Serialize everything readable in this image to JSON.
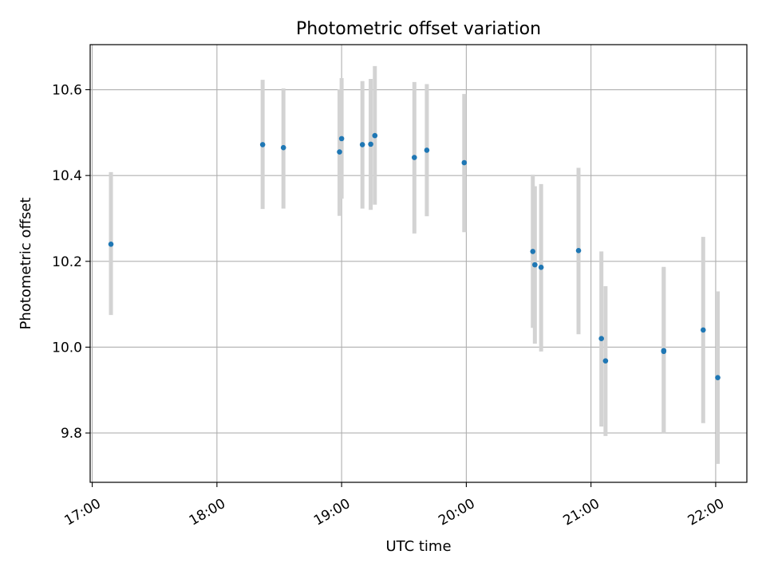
{
  "chart_data": {
    "type": "scatter",
    "title": "Photometric offset variation",
    "xlabel": "UTC time",
    "ylabel": "Photometric offset",
    "x_axis_type": "time",
    "xlim": [
      "16:59",
      "22:15"
    ],
    "ylim": [
      9.685,
      10.705
    ],
    "grid": true,
    "x_ticks": [
      "17:00",
      "18:00",
      "19:00",
      "20:00",
      "21:00",
      "22:00"
    ],
    "y_ticks": [
      "9.8",
      "10.0",
      "10.2",
      "10.4",
      "10.6"
    ],
    "point_color": "#1f77b4",
    "errorbar_color": "#d3d3d3",
    "points": [
      {
        "x": "17:09",
        "y": 10.24,
        "ylow": 10.075,
        "yhigh": 10.408
      },
      {
        "x": "18:22",
        "y": 10.472,
        "ylow": 10.322,
        "yhigh": 10.623
      },
      {
        "x": "18:32",
        "y": 10.465,
        "ylow": 10.323,
        "yhigh": 10.603
      },
      {
        "x": "18:59",
        "y": 10.455,
        "ylow": 10.306,
        "yhigh": 10.601
      },
      {
        "x": "19:00",
        "y": 10.486,
        "ylow": 10.346,
        "yhigh": 10.627
      },
      {
        "x": "19:10",
        "y": 10.472,
        "ylow": 10.323,
        "yhigh": 10.62
      },
      {
        "x": "19:14",
        "y": 10.473,
        "ylow": 10.32,
        "yhigh": 10.625
      },
      {
        "x": "19:16",
        "y": 10.493,
        "ylow": 10.332,
        "yhigh": 10.655
      },
      {
        "x": "19:35",
        "y": 10.442,
        "ylow": 10.265,
        "yhigh": 10.618
      },
      {
        "x": "19:41",
        "y": 10.459,
        "ylow": 10.305,
        "yhigh": 10.613
      },
      {
        "x": "19:59",
        "y": 10.43,
        "ylow": 10.268,
        "yhigh": 10.59
      },
      {
        "x": "20:32",
        "y": 10.223,
        "ylow": 10.045,
        "yhigh": 10.402
      },
      {
        "x": "20:33",
        "y": 10.192,
        "ylow": 10.008,
        "yhigh": 10.375
      },
      {
        "x": "20:36",
        "y": 10.186,
        "ylow": 9.99,
        "yhigh": 10.38
      },
      {
        "x": "20:54",
        "y": 10.225,
        "ylow": 10.03,
        "yhigh": 10.418
      },
      {
        "x": "21:05",
        "y": 10.02,
        "ylow": 9.815,
        "yhigh": 10.223
      },
      {
        "x": "21:07",
        "y": 9.968,
        "ylow": 9.793,
        "yhigh": 10.142
      },
      {
        "x": "21:35",
        "y": 9.99,
        "ylow": 9.8,
        "yhigh": 10.185
      },
      {
        "x": "21:35",
        "y": 9.992,
        "ylow": 9.8,
        "yhigh": 10.187
      },
      {
        "x": "21:54",
        "y": 10.04,
        "ylow": 9.823,
        "yhigh": 10.257
      },
      {
        "x": "22:01",
        "y": 9.929,
        "ylow": 9.728,
        "yhigh": 10.13
      }
    ]
  }
}
